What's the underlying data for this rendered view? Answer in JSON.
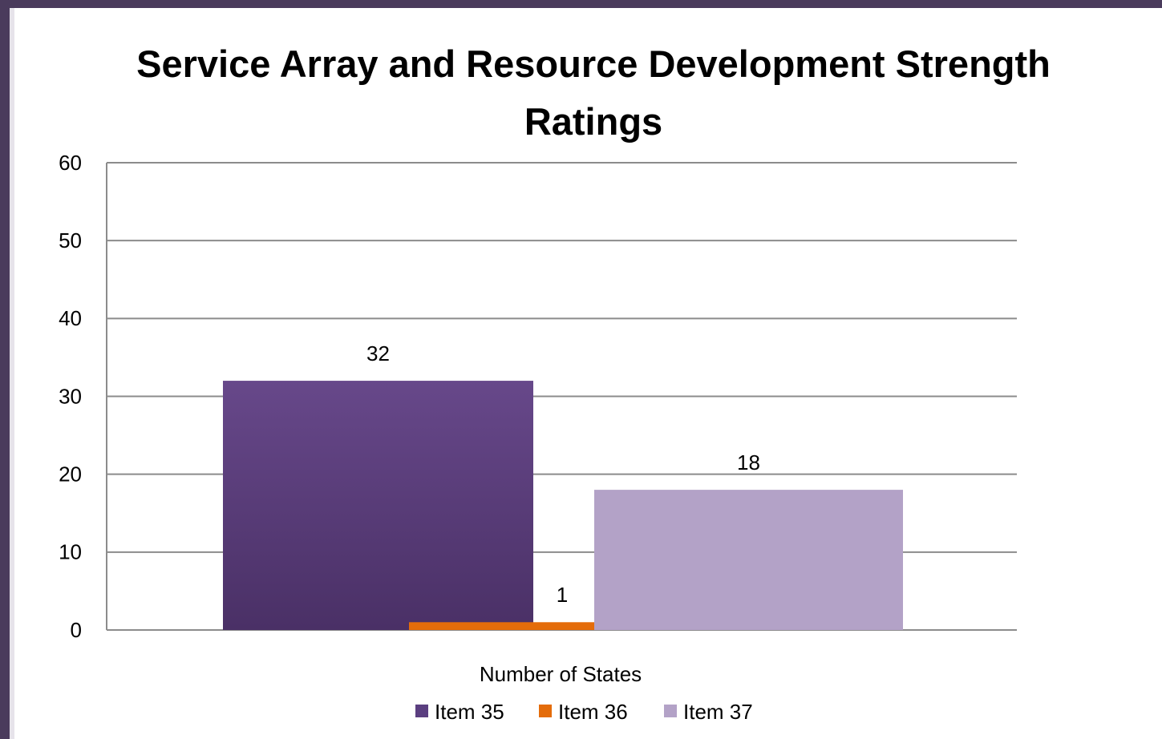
{
  "chart_data": {
    "type": "bar",
    "title": "Service Array and Resource Development Strength Ratings",
    "categories": [
      "Number of States"
    ],
    "series": [
      {
        "name": "Item 35",
        "color": "#5b3f80",
        "values": [
          32
        ]
      },
      {
        "name": "Item 36",
        "color": "#e46c0a",
        "values": [
          1
        ]
      },
      {
        "name": "Item 37",
        "color": "#b3a2c7",
        "values": [
          18
        ]
      }
    ],
    "ylim": [
      0,
      60
    ],
    "yticks": [
      0,
      10,
      20,
      30,
      40,
      50,
      60
    ],
    "grid": true,
    "legend": "bottom"
  }
}
